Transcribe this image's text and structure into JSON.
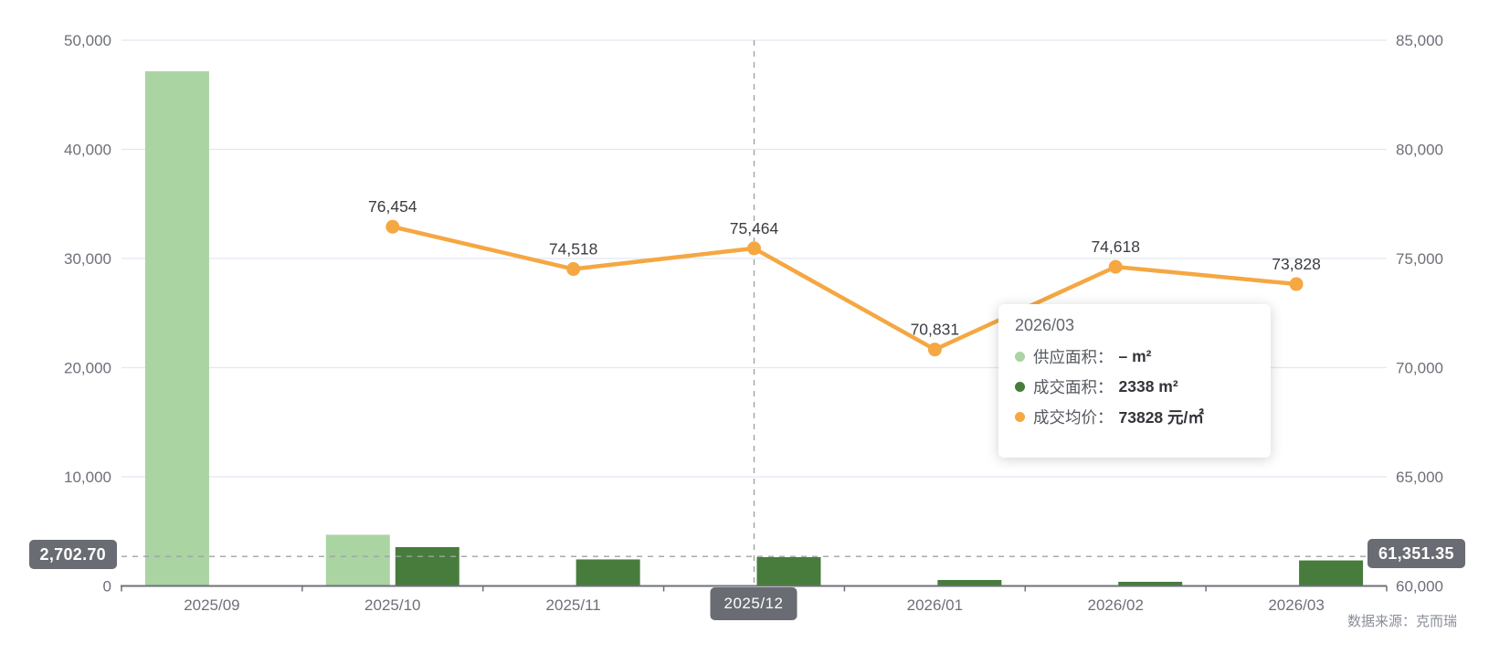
{
  "source_note": "数据来源：克而瑞",
  "colors": {
    "supply": "#aad4a2",
    "deal": "#487c3c",
    "price": "#f5a742",
    "grid": "#e2e7f1",
    "axis": "#6e7079",
    "axis_label": "#6e7079",
    "data_label": "#3b3d42",
    "crosshair": "#a0a3a8",
    "badge_bg": "#696c72",
    "badge_text": "#ffffff"
  },
  "chart_data": {
    "type": "bar+line combo, dual y-axis",
    "categories": [
      "2025/09",
      "2025/10",
      "2025/11",
      "2025/12",
      "2026/01",
      "2026/02",
      "2026/03"
    ],
    "series": [
      {
        "name": "供应面积",
        "type": "bar",
        "axis": "left",
        "color_key": "supply",
        "values": [
          47150,
          4690,
          null,
          null,
          null,
          null,
          null
        ]
      },
      {
        "name": "成交面积",
        "type": "bar",
        "axis": "left",
        "color_key": "deal",
        "values": [
          null,
          3560,
          2430,
          2640,
          545,
          380,
          2338
        ]
      },
      {
        "name": "成交均价",
        "type": "line",
        "axis": "right",
        "color_key": "price",
        "values": [
          null,
          76454,
          74518,
          75464,
          70831,
          74618,
          73828
        ],
        "point_labels": [
          "",
          "76,454",
          "74,518",
          "75,464",
          "70,831",
          "74,618",
          "73,828"
        ]
      }
    ],
    "left_axis": {
      "min": 0,
      "max": 50000,
      "step": 10000,
      "tick_labels": [
        "0",
        "10,000",
        "20,000",
        "30,000",
        "40,000",
        "50,000"
      ]
    },
    "right_axis": {
      "min": 60000,
      "max": 85000,
      "step": 5000,
      "tick_labels": [
        "60,000",
        "65,000",
        "70,000",
        "75,000",
        "80,000",
        "85,000"
      ]
    },
    "grid": true,
    "legend_position": "none"
  },
  "crosshair": {
    "x_category": "2025/12",
    "left_value": 2702.7,
    "left_value_label": "2,702.70",
    "right_value_label": "61,351.35"
  },
  "tooltip": {
    "title": "2026/03",
    "rows": [
      {
        "label": "供应面积：",
        "value": "– m²",
        "color_key": "supply"
      },
      {
        "label": "成交面积：",
        "value": "2338 m²",
        "color_key": "deal"
      },
      {
        "label": "成交均价：",
        "value": "73828 元/㎡",
        "color_key": "price"
      }
    ]
  }
}
